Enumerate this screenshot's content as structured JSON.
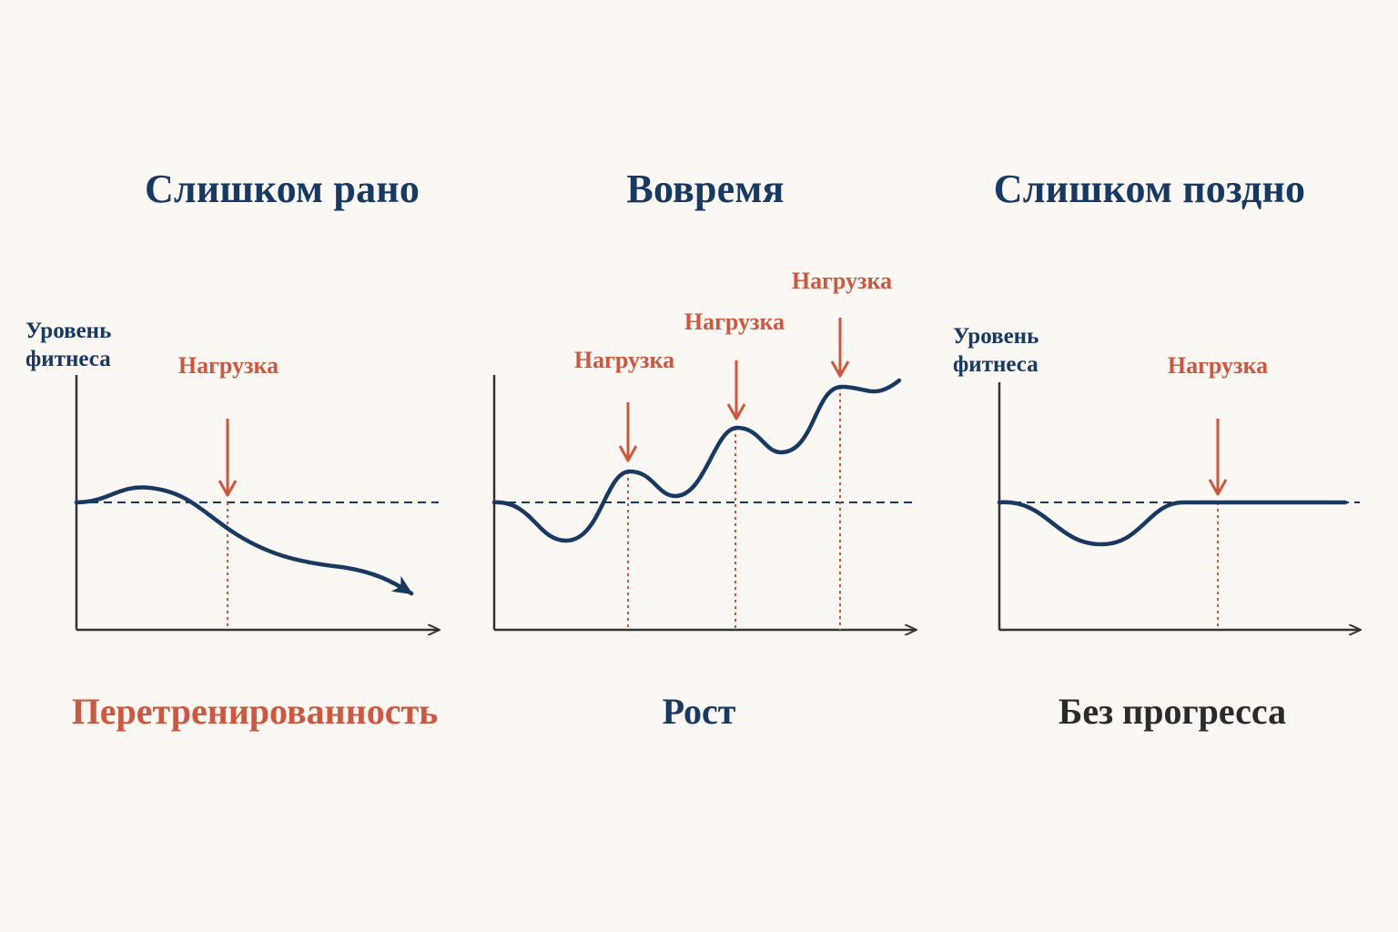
{
  "colors": {
    "background": "#fbf8f3",
    "navy": "#163a64",
    "accent_red": "#d0563d",
    "axis": "#333333",
    "dark_text": "#2b2b2b"
  },
  "panels": [
    {
      "id": "too-early",
      "title": "Слишком рано",
      "caption": "Перетренированность",
      "y_axis_label": [
        "Уровень",
        "фитнеса"
      ],
      "load_markers": [
        "Нагрузка"
      ],
      "curve_trend": "declining"
    },
    {
      "id": "on-time",
      "title": "Вовремя",
      "caption": "Рост",
      "y_axis_label": [],
      "load_markers": [
        "Нагрузка",
        "Нагрузка",
        "Нагрузка"
      ],
      "curve_trend": "rising"
    },
    {
      "id": "too-late",
      "title": "Слишком поздно",
      "caption": "Без прогресса",
      "y_axis_label": [
        "Уровень",
        "фитнеса"
      ],
      "load_markers": [
        "Нагрузка"
      ],
      "curve_trend": "flat"
    }
  ]
}
